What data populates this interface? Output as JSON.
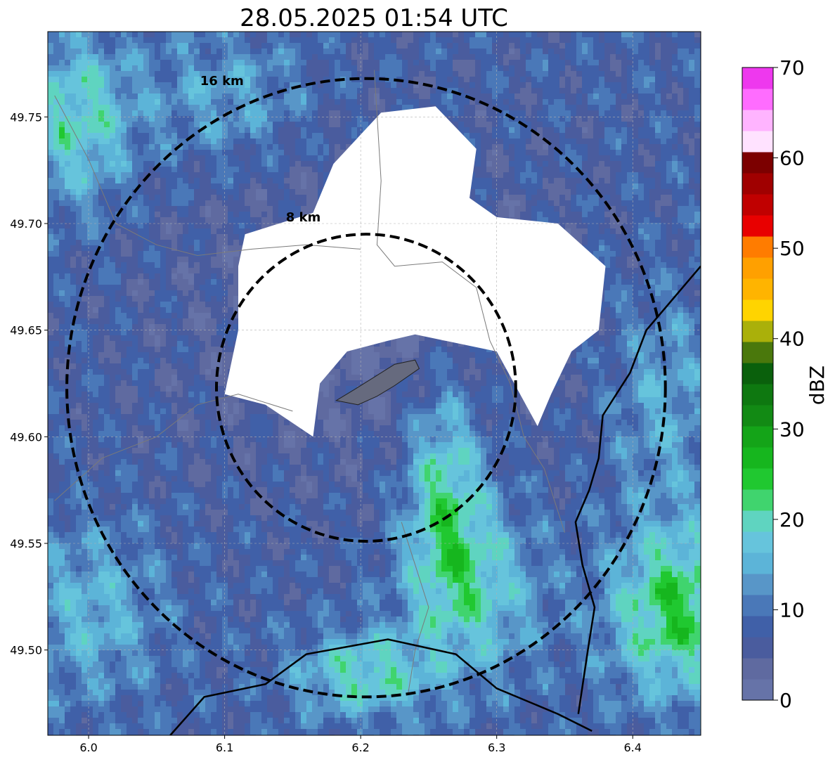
{
  "title": "28.05.2025 01:54 UTC",
  "map": {
    "lon_range": [
      5.97,
      6.45
    ],
    "lat_range": [
      49.46,
      49.79
    ],
    "x_ticks": [
      {
        "value": 6.0,
        "label": "6.0"
      },
      {
        "value": 6.1,
        "label": "6.1"
      },
      {
        "value": 6.2,
        "label": "6.2"
      },
      {
        "value": 6.3,
        "label": "6.3"
      },
      {
        "value": 6.4,
        "label": "6.4"
      }
    ],
    "y_ticks": [
      {
        "value": 49.5,
        "label": "49.50"
      },
      {
        "value": 49.55,
        "label": "49.55"
      },
      {
        "value": 49.6,
        "label": "49.60"
      },
      {
        "value": 49.65,
        "label": "49.65"
      },
      {
        "value": 49.7,
        "label": "49.70"
      },
      {
        "value": 49.75,
        "label": "49.75"
      }
    ],
    "grid": true,
    "radar_center": {
      "lon": 6.204,
      "lat": 49.623
    },
    "range_rings": [
      {
        "radius_km": 8,
        "label": "8 km",
        "radius_lon": 0.11,
        "radius_lat": 0.072,
        "label_lon": 6.145,
        "label_lat": 49.701
      },
      {
        "radius_km": 16,
        "label": "16 km",
        "radius_lon": 0.22,
        "radius_lat": 0.145,
        "label_lon": 6.082,
        "label_lat": 49.765
      }
    ],
    "no_echo_zone": [
      [
        6.115,
        49.695
      ],
      [
        6.165,
        49.705
      ],
      [
        6.18,
        49.728
      ],
      [
        6.215,
        49.752
      ],
      [
        6.255,
        49.755
      ],
      [
        6.285,
        49.735
      ],
      [
        6.28,
        49.712
      ],
      [
        6.3,
        49.703
      ],
      [
        6.345,
        49.7
      ],
      [
        6.38,
        49.68
      ],
      [
        6.375,
        49.65
      ],
      [
        6.355,
        49.64
      ],
      [
        6.34,
        49.62
      ],
      [
        6.33,
        49.605
      ],
      [
        6.3,
        49.64
      ],
      [
        6.24,
        49.648
      ],
      [
        6.22,
        49.645
      ],
      [
        6.19,
        49.64
      ],
      [
        6.17,
        49.625
      ],
      [
        6.165,
        49.6
      ],
      [
        6.13,
        49.615
      ],
      [
        6.1,
        49.62
      ],
      [
        6.11,
        49.65
      ],
      [
        6.11,
        49.68
      ]
    ],
    "urban_area": [
      [
        6.182,
        49.617
      ],
      [
        6.195,
        49.622
      ],
      [
        6.21,
        49.628
      ],
      [
        6.225,
        49.634
      ],
      [
        6.24,
        49.636
      ],
      [
        6.243,
        49.632
      ],
      [
        6.225,
        49.624
      ],
      [
        6.212,
        49.619
      ],
      [
        6.198,
        49.615
      ]
    ],
    "border_line": [
      [
        6.36,
        49.47
      ],
      [
        6.367,
        49.5
      ],
      [
        6.372,
        49.52
      ],
      [
        6.363,
        49.54
      ],
      [
        6.358,
        49.56
      ],
      [
        6.368,
        49.575
      ],
      [
        6.375,
        49.59
      ],
      [
        6.378,
        49.61
      ],
      [
        6.398,
        49.63
      ],
      [
        6.41,
        49.65
      ],
      [
        6.43,
        49.665
      ],
      [
        6.45,
        49.68
      ]
    ],
    "south_border": [
      [
        6.06,
        49.46
      ],
      [
        6.085,
        49.478
      ],
      [
        6.13,
        49.484
      ],
      [
        6.16,
        49.498
      ],
      [
        6.22,
        49.505
      ],
      [
        6.27,
        49.498
      ],
      [
        6.3,
        49.482
      ],
      [
        6.345,
        49.47
      ],
      [
        6.37,
        49.462
      ]
    ],
    "rivers": [
      [
        [
          6.21,
          49.772
        ],
        [
          6.215,
          49.72
        ],
        [
          6.212,
          49.69
        ],
        [
          6.225,
          49.68
        ],
        [
          6.26,
          49.682
        ],
        [
          6.285,
          49.67
        ],
        [
          6.295,
          49.645
        ],
        [
          6.31,
          49.625
        ],
        [
          6.32,
          49.6
        ],
        [
          6.335,
          49.585
        ],
        [
          6.35,
          49.555
        ]
      ],
      [
        [
          5.975,
          49.76
        ],
        [
          6.0,
          49.73
        ],
        [
          6.02,
          49.7
        ],
        [
          6.05,
          49.69
        ],
        [
          6.08,
          49.685
        ],
        [
          6.12,
          49.688
        ],
        [
          6.16,
          49.69
        ],
        [
          6.2,
          49.688
        ]
      ],
      [
        [
          5.975,
          49.57
        ],
        [
          6.01,
          49.59
        ],
        [
          6.05,
          49.6
        ],
        [
          6.08,
          49.615
        ],
        [
          6.11,
          49.62
        ],
        [
          6.15,
          49.612
        ]
      ],
      [
        [
          6.23,
          49.56
        ],
        [
          6.24,
          49.54
        ],
        [
          6.25,
          49.52
        ],
        [
          6.24,
          49.5
        ],
        [
          6.235,
          49.48
        ]
      ]
    ]
  },
  "colorbar": {
    "label": "dBZ",
    "min": 0,
    "max": 70,
    "ticks": [
      {
        "value": 0,
        "label": "0"
      },
      {
        "value": 10,
        "label": "10"
      },
      {
        "value": 20,
        "label": "20"
      },
      {
        "value": 30,
        "label": "30"
      },
      {
        "value": 40,
        "label": "40"
      },
      {
        "value": 50,
        "label": "50"
      },
      {
        "value": 60,
        "label": "60"
      },
      {
        "value": 70,
        "label": "70"
      }
    ],
    "colors": [
      "#6673a8",
      "#5f6aa0",
      "#4a5c9e",
      "#4060a8",
      "#4a78b8",
      "#5896c8",
      "#5cb4d8",
      "#66c4dc",
      "#5fd4c0",
      "#40d46e",
      "#20c830",
      "#16b61e",
      "#14a418",
      "#128a14",
      "#0e7810",
      "#0a600c",
      "#4a780c",
      "#aab00a",
      "#ffd400",
      "#ffb400",
      "#ffa000",
      "#ff7c00",
      "#e80000",
      "#c00000",
      "#a00000",
      "#7c0000",
      "#ffe2ff",
      "#ffb4ff",
      "#ff6cff",
      "#ee38ee"
    ]
  }
}
